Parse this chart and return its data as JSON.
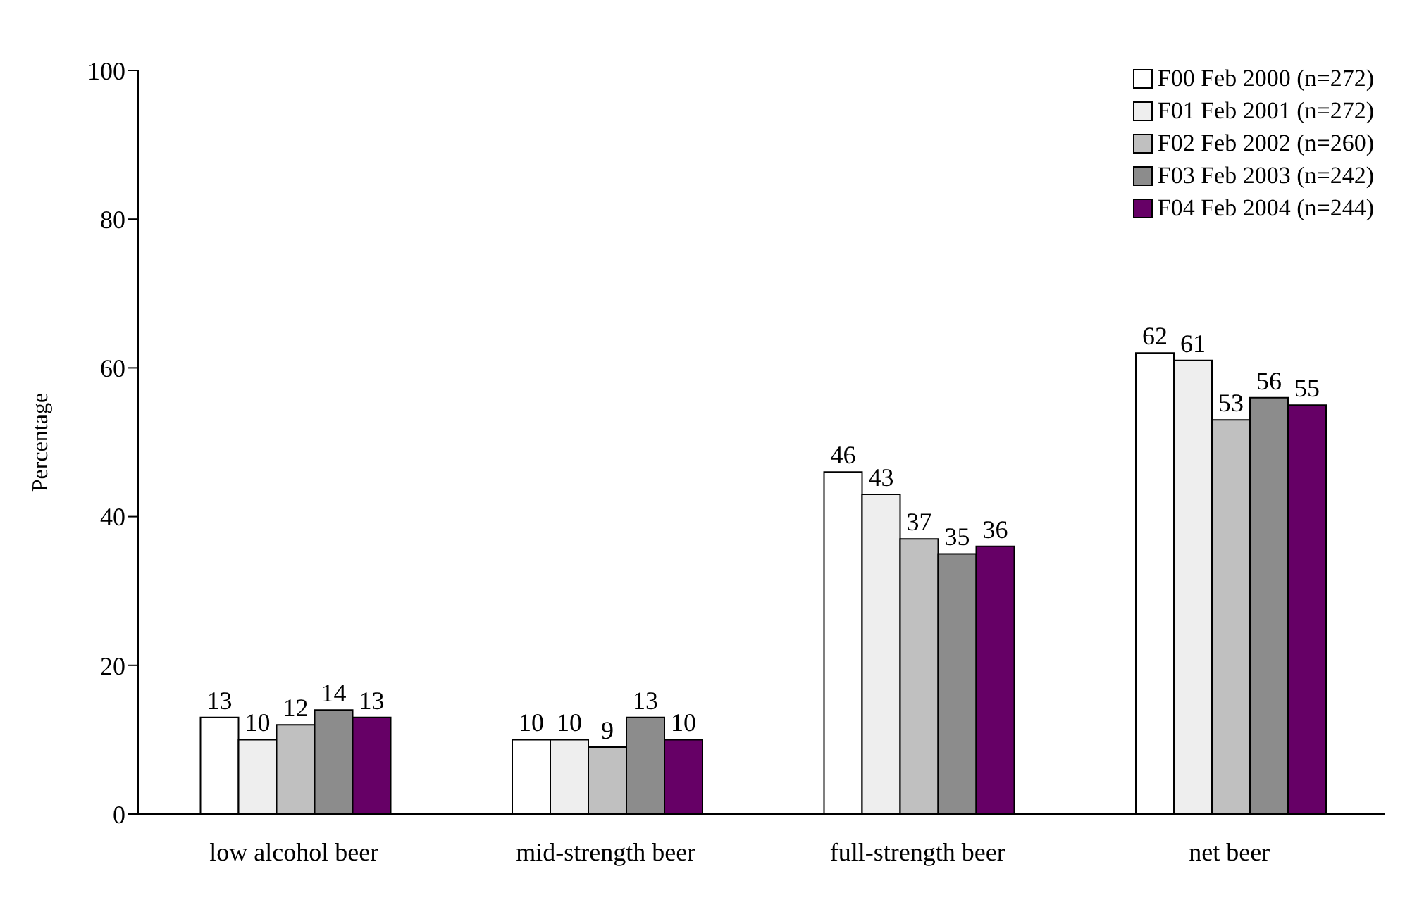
{
  "chart_data": {
    "type": "bar",
    "ylabel": "Percentage",
    "categories": [
      "low alcohol beer",
      "mid-strength beer",
      "full-strength beer",
      "net beer"
    ],
    "series": [
      {
        "name": "F00 Feb 2000 (n=272)",
        "color": "#ffffff",
        "values": [
          13,
          10,
          46,
          62
        ]
      },
      {
        "name": "F01 Feb 2001 (n=272)",
        "color": "#eeeeee",
        "values": [
          10,
          10,
          43,
          61
        ]
      },
      {
        "name": "F02 Feb 2002 (n=260)",
        "color": "#c0c0c0",
        "values": [
          12,
          9,
          37,
          53
        ]
      },
      {
        "name": "F03 Feb 2003 (n=242)",
        "color": "#8c8c8c",
        "values": [
          14,
          13,
          35,
          56
        ]
      },
      {
        "name": "F04 Feb 2004 (n=244)",
        "color": "#660066",
        "values": [
          13,
          10,
          36,
          55
        ]
      }
    ],
    "ylim": [
      0,
      100
    ],
    "yticks": [
      0,
      20,
      40,
      60,
      80,
      100
    ],
    "grid": false,
    "legend": "top right",
    "data_labels": true
  }
}
